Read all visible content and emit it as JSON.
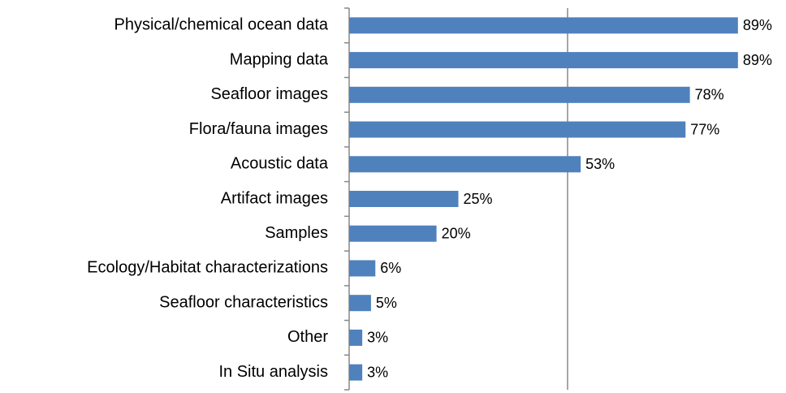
{
  "chart_data": {
    "type": "hbar",
    "categories": [
      "Physical/chemical ocean data",
      "Mapping data",
      "Seafloor images",
      "Flora/fauna images",
      "Acoustic data",
      "Artifact images",
      "Samples",
      "Ecology/Habitat characterizations",
      "Seafloor characteristics",
      "Other",
      "In Situ analysis"
    ],
    "values": [
      89,
      89,
      78,
      77,
      53,
      25,
      20,
      6,
      5,
      3,
      3
    ],
    "value_labels": [
      "89%",
      "89%",
      "78%",
      "77%",
      "53%",
      "25%",
      "20%",
      "6%",
      "5%",
      "3%",
      "3%"
    ],
    "color": "#4f81bd",
    "xlim": [
      0,
      100
    ],
    "xticks": [
      50
    ],
    "grid": true
  }
}
